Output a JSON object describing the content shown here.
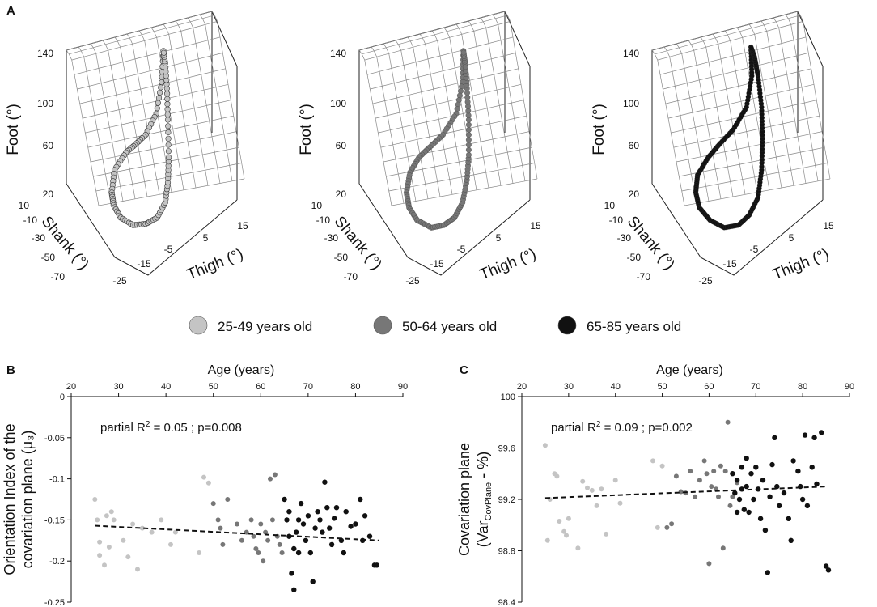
{
  "panel_a_label": "A",
  "panel_b_label": "B",
  "panel_c_label": "C",
  "colors": {
    "young": "#c4c4c4",
    "middle": "#777777",
    "old": "#111111"
  },
  "legend": [
    {
      "label": "25-49 years old",
      "group": "young"
    },
    {
      "label": "50-64 years old",
      "group": "middle"
    },
    {
      "label": "65-85 years old",
      "group": "old"
    }
  ],
  "chart_data": [
    {
      "type": "scatter3d",
      "group": "young",
      "zlabel": "Foot (°)",
      "ylabel": "Shank (°)",
      "xlabel": "Thigh (°)",
      "z_ticks": [
        "140",
        "100",
        "60",
        "20"
      ],
      "y_ticks": [
        "10",
        "-10",
        "-30",
        "-50",
        "-70"
      ],
      "x_ticks": [
        "-25",
        "-15",
        "-5",
        "5",
        "15"
      ],
      "zlim": [
        20,
        140
      ],
      "ylim": [
        -70,
        10
      ],
      "xlim": [
        -25,
        15
      ],
      "loop": [
        [
          0.7,
          0.05
        ],
        [
          0.68,
          0.3
        ],
        [
          0.62,
          0.55
        ],
        [
          0.5,
          0.72
        ],
        [
          0.38,
          0.8
        ],
        [
          0.28,
          0.86
        ],
        [
          0.15,
          1.0
        ],
        [
          0.12,
          1.18
        ],
        [
          0.14,
          1.28
        ],
        [
          0.22,
          1.38
        ],
        [
          0.36,
          1.44
        ],
        [
          0.5,
          1.43
        ],
        [
          0.63,
          1.38
        ],
        [
          0.72,
          1.26
        ],
        [
          0.75,
          1.1
        ],
        [
          0.76,
          0.9
        ],
        [
          0.75,
          0.6
        ],
        [
          0.74,
          0.35
        ],
        [
          0.72,
          0.15
        ],
        [
          0.7,
          0.05
        ]
      ]
    },
    {
      "type": "scatter3d",
      "group": "middle",
      "zlabel": "Foot (°)",
      "ylabel": "Shank (°)",
      "xlabel": "Thigh (°)",
      "z_ticks": [
        "140",
        "100",
        "60",
        "20"
      ],
      "y_ticks": [
        "10",
        "-10",
        "-30",
        "-50",
        "-70"
      ],
      "x_ticks": [
        "-25",
        "-15",
        "-5",
        "5",
        "15"
      ],
      "zlim": [
        20,
        140
      ],
      "ylim": [
        -70,
        10
      ],
      "xlim": [
        -25,
        15
      ],
      "loop": [
        [
          0.78,
          0.05
        ],
        [
          0.77,
          0.3
        ],
        [
          0.7,
          0.55
        ],
        [
          0.55,
          0.72
        ],
        [
          0.4,
          0.82
        ],
        [
          0.28,
          0.9
        ],
        [
          0.18,
          1.02
        ],
        [
          0.14,
          1.18
        ],
        [
          0.17,
          1.3
        ],
        [
          0.26,
          1.4
        ],
        [
          0.42,
          1.46
        ],
        [
          0.56,
          1.44
        ],
        [
          0.68,
          1.38
        ],
        [
          0.77,
          1.26
        ],
        [
          0.82,
          1.08
        ],
        [
          0.84,
          0.88
        ],
        [
          0.84,
          0.6
        ],
        [
          0.82,
          0.35
        ],
        [
          0.8,
          0.15
        ],
        [
          0.78,
          0.05
        ]
      ]
    },
    {
      "type": "scatter3d",
      "group": "old",
      "zlabel": "Foot (°)",
      "ylabel": "Shank (°)",
      "xlabel": "Thigh (°)",
      "z_ticks": [
        "140",
        "100",
        "60",
        "20"
      ],
      "y_ticks": [
        "10",
        "-10",
        "-30",
        "-50",
        "-70"
      ],
      "x_ticks": [
        "-25",
        "-15",
        "-5",
        "5",
        "15"
      ],
      "zlim": [
        20,
        140
      ],
      "ylim": [
        -70,
        10
      ],
      "xlim": [
        -25,
        15
      ],
      "loop": [
        [
          0.72,
          0.02
        ],
        [
          0.73,
          0.25
        ],
        [
          0.67,
          0.5
        ],
        [
          0.52,
          0.68
        ],
        [
          0.36,
          0.8
        ],
        [
          0.24,
          0.9
        ],
        [
          0.12,
          1.04
        ],
        [
          0.1,
          1.18
        ],
        [
          0.14,
          1.3
        ],
        [
          0.26,
          1.4
        ],
        [
          0.42,
          1.46
        ],
        [
          0.58,
          1.44
        ],
        [
          0.7,
          1.36
        ],
        [
          0.8,
          1.22
        ],
        [
          0.84,
          1.0
        ],
        [
          0.85,
          0.75
        ],
        [
          0.84,
          0.5
        ],
        [
          0.8,
          0.25
        ],
        [
          0.76,
          0.1
        ],
        [
          0.72,
          0.02
        ]
      ]
    },
    {
      "type": "scatter",
      "title": "",
      "xlabel": "Age (years)",
      "ylabel_line1": "Orientation Index of the",
      "ylabel_line2": "covariation plane (μ₃)",
      "xlim": [
        20,
        90
      ],
      "ylim": [
        -0.25,
        0
      ],
      "x_ticks": [
        "20",
        "30",
        "40",
        "50",
        "60",
        "70",
        "80",
        "90"
      ],
      "y_ticks": [
        "0",
        "-0.05",
        "-0.1",
        "-0.15",
        "-0.2",
        "-0.25"
      ],
      "annotation_prefix": "partial R",
      "annotation_sup": "2",
      "annotation_suffix": " = 0.05 ; p=0.008",
      "trend": {
        "x": [
          25,
          85
        ],
        "y": [
          -0.157,
          -0.175
        ]
      },
      "series": [
        {
          "group": "young",
          "x": [
            25,
            25.5,
            26,
            26,
            27,
            27.5,
            28,
            28.5,
            29,
            31,
            32,
            33,
            34,
            35,
            37,
            39,
            41,
            42,
            47,
            48,
            49
          ],
          "y": [
            -0.125,
            -0.15,
            -0.177,
            -0.193,
            -0.205,
            -0.145,
            -0.183,
            -0.14,
            -0.15,
            -0.175,
            -0.195,
            -0.155,
            -0.21,
            -0.16,
            -0.165,
            -0.15,
            -0.18,
            -0.165,
            -0.19,
            -0.098,
            -0.105
          ]
        },
        {
          "group": "middle",
          "x": [
            50,
            51,
            51.5,
            52,
            53,
            55,
            56,
            57,
            58,
            58.5,
            59,
            59.5,
            60,
            60.5,
            61,
            61.5,
            62,
            62.5,
            63,
            63.5,
            64,
            64.5
          ],
          "y": [
            -0.13,
            -0.15,
            -0.16,
            -0.18,
            -0.125,
            -0.155,
            -0.175,
            -0.165,
            -0.15,
            -0.17,
            -0.185,
            -0.19,
            -0.155,
            -0.2,
            -0.165,
            -0.175,
            -0.1,
            -0.15,
            -0.095,
            -0.17,
            -0.18,
            -0.19
          ]
        },
        {
          "group": "old",
          "x": [
            65,
            65.5,
            66,
            66,
            66.5,
            67,
            67,
            67.5,
            68,
            68,
            68.5,
            69,
            69.5,
            70,
            70.5,
            71,
            71.5,
            72,
            72.5,
            73,
            73.5,
            74,
            74.5,
            75,
            75.5,
            76,
            77,
            77.5,
            78,
            79,
            80,
            81,
            81.5,
            82,
            83,
            84,
            84.5
          ],
          "y": [
            -0.125,
            -0.15,
            -0.14,
            -0.17,
            -0.215,
            -0.235,
            -0.185,
            -0.165,
            -0.15,
            -0.19,
            -0.13,
            -0.155,
            -0.175,
            -0.145,
            -0.19,
            -0.225,
            -0.16,
            -0.14,
            -0.15,
            -0.165,
            -0.104,
            -0.135,
            -0.16,
            -0.18,
            -0.148,
            -0.135,
            -0.175,
            -0.19,
            -0.14,
            -0.158,
            -0.155,
            -0.125,
            -0.175,
            -0.145,
            -0.17,
            -0.205,
            -0.205
          ]
        }
      ]
    },
    {
      "type": "scatter",
      "title": "",
      "xlabel": "Age (years)",
      "ylabel_line1": "Covariation plane",
      "ylabel_line2_pre": "(Var",
      "ylabel_line2_sub": "CovPlane",
      "ylabel_line2_post": " - %)",
      "xlim": [
        20,
        90
      ],
      "ylim": [
        98.4,
        100
      ],
      "x_ticks": [
        "20",
        "30",
        "40",
        "50",
        "60",
        "70",
        "80",
        "90"
      ],
      "y_ticks": [
        "100",
        "99.6",
        "99.2",
        "98.8",
        "98.4"
      ],
      "annotation_prefix": "partial R",
      "annotation_sup": "2",
      "annotation_suffix": " = 0.09 ; p=0.002",
      "trend": {
        "x": [
          25,
          85
        ],
        "y": [
          99.21,
          99.3
        ]
      },
      "series": [
        {
          "group": "young",
          "x": [
            25,
            25.5,
            26,
            27,
            27.5,
            28,
            29,
            29.5,
            30,
            32,
            33,
            34,
            35,
            36,
            37,
            38,
            40,
            41,
            48,
            49,
            50
          ],
          "y": [
            99.62,
            98.88,
            99.2,
            99.4,
            99.38,
            99.03,
            98.95,
            98.92,
            99.05,
            98.82,
            99.34,
            99.29,
            99.27,
            99.15,
            99.28,
            98.93,
            99.35,
            99.17,
            99.5,
            98.98,
            99.46
          ]
        },
        {
          "group": "middle",
          "x": [
            51,
            52,
            53,
            54,
            55,
            56,
            57,
            58,
            59,
            59.5,
            60,
            60.5,
            61,
            61.5,
            62,
            62.5,
            63,
            63.5,
            64,
            64.5,
            65,
            66
          ],
          "y": [
            98.98,
            99.01,
            99.38,
            99.26,
            99.25,
            99.42,
            99.22,
            99.35,
            99.5,
            99.4,
            98.7,
            99.3,
            99.42,
            99.28,
            99.22,
            99.46,
            98.82,
            99.42,
            99.8,
            99.15,
            99.22,
            99.33
          ]
        },
        {
          "group": "old",
          "x": [
            65,
            65.5,
            66,
            66,
            66.5,
            67,
            67,
            67.5,
            68,
            68,
            68.5,
            69,
            69.5,
            70,
            70.5,
            71,
            71.5,
            72,
            72.5,
            73,
            73.5,
            74,
            74.5,
            75,
            76,
            77,
            77.5,
            78,
            79,
            79.5,
            80,
            80.5,
            81,
            82,
            82.5,
            83,
            84,
            85,
            85.5
          ],
          "y": [
            99.4,
            99.25,
            99.35,
            99.1,
            99.2,
            99.45,
            99.28,
            99.12,
            99.52,
            99.3,
            99.1,
            99.4,
            99.2,
            99.45,
            99.28,
            99.05,
            99.35,
            98.96,
            98.63,
            99.22,
            99.47,
            99.68,
            99.3,
            99.15,
            99.25,
            99.05,
            98.88,
            99.5,
            99.42,
            99.3,
            99.2,
            99.7,
            99.15,
            99.45,
            99.68,
            99.32,
            99.72,
            98.68,
            98.65
          ]
        }
      ]
    }
  ]
}
